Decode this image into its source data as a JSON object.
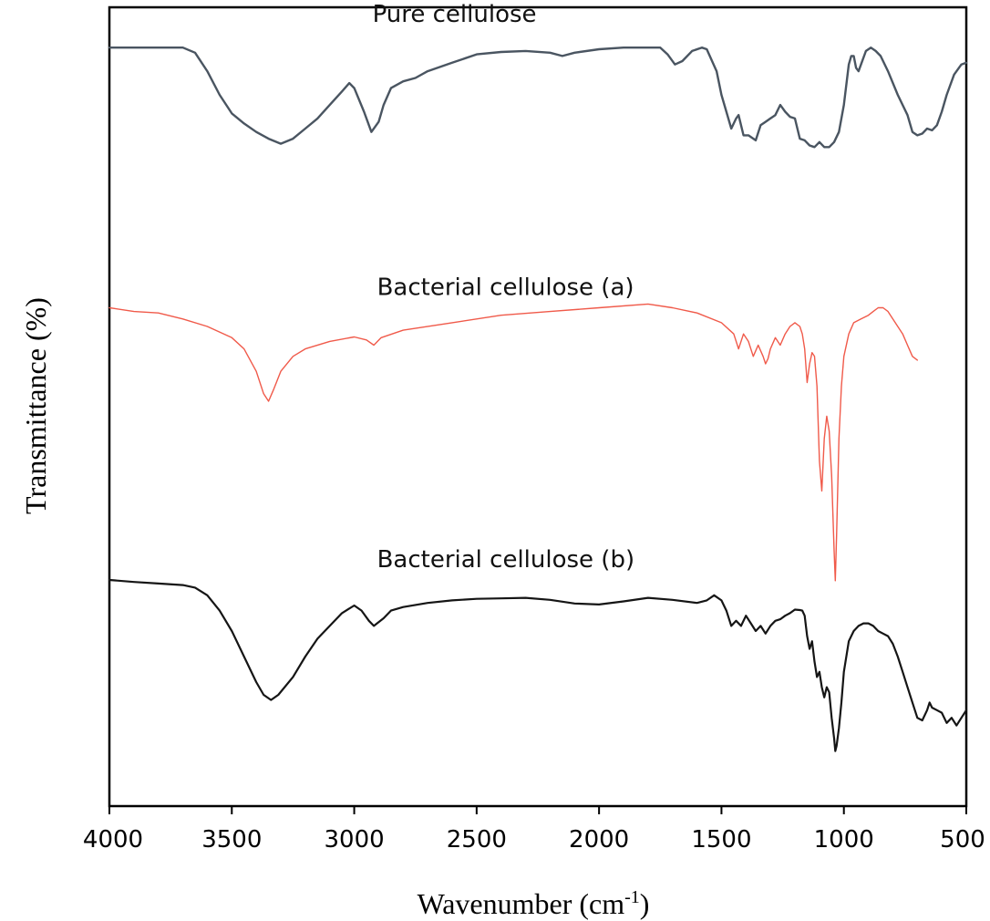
{
  "chart_data": {
    "type": "line",
    "xlabel": "Wavenumber (cm",
    "xlabel_sup": "-1",
    "xlabel_close": ")",
    "ylabel": "Transmittance (%)",
    "xlim": [
      4000,
      500
    ],
    "x_reversed": true,
    "ylim": [
      0,
      100
    ],
    "y_ticks_shown": false,
    "grid": false,
    "x_ticks": [
      4000,
      3500,
      3000,
      2500,
      2000,
      1500,
      1000,
      500
    ],
    "x_tick_labels": [
      "4000",
      "3500",
      "3000",
      "2500",
      "2000",
      "1500",
      "1000",
      "500"
    ],
    "series": [
      {
        "name": "Pure cellulose",
        "color": "#4a5561",
        "points": [
          [
            4000,
            94
          ],
          [
            3700,
            94
          ],
          [
            3650,
            92.5
          ],
          [
            3600,
            87
          ],
          [
            3550,
            80
          ],
          [
            3500,
            74.5
          ],
          [
            3450,
            71.5
          ],
          [
            3400,
            69
          ],
          [
            3350,
            67
          ],
          [
            3300,
            65.5
          ],
          [
            3250,
            67
          ],
          [
            3200,
            70
          ],
          [
            3150,
            73
          ],
          [
            3100,
            77
          ],
          [
            3050,
            81
          ],
          [
            3020,
            83.5
          ],
          [
            3000,
            82
          ],
          [
            2960,
            75
          ],
          [
            2930,
            69
          ],
          [
            2900,
            72
          ],
          [
            2880,
            77
          ],
          [
            2850,
            82
          ],
          [
            2800,
            84
          ],
          [
            2750,
            85
          ],
          [
            2700,
            87
          ],
          [
            2600,
            89.5
          ],
          [
            2500,
            92
          ],
          [
            2400,
            92.7
          ],
          [
            2300,
            93
          ],
          [
            2200,
            92.5
          ],
          [
            2150,
            91.5
          ],
          [
            2100,
            92.5
          ],
          [
            2000,
            93.5
          ],
          [
            1900,
            94
          ],
          [
            1750,
            94
          ],
          [
            1720,
            92
          ],
          [
            1690,
            89
          ],
          [
            1660,
            90
          ],
          [
            1620,
            93
          ],
          [
            1580,
            94
          ],
          [
            1560,
            93.5
          ],
          [
            1520,
            87
          ],
          [
            1500,
            80
          ],
          [
            1480,
            75
          ],
          [
            1460,
            70
          ],
          [
            1440,
            73
          ],
          [
            1430,
            74
          ],
          [
            1410,
            68
          ],
          [
            1390,
            68
          ],
          [
            1360,
            66.5
          ],
          [
            1340,
            71
          ],
          [
            1320,
            72
          ],
          [
            1300,
            73
          ],
          [
            1280,
            74
          ],
          [
            1260,
            77
          ],
          [
            1240,
            75
          ],
          [
            1220,
            73.5
          ],
          [
            1200,
            73
          ],
          [
            1180,
            67
          ],
          [
            1160,
            66.5
          ],
          [
            1140,
            65
          ],
          [
            1120,
            64.5
          ],
          [
            1100,
            66
          ],
          [
            1080,
            64.5
          ],
          [
            1060,
            64.5
          ],
          [
            1040,
            66
          ],
          [
            1020,
            69
          ],
          [
            1000,
            77
          ],
          [
            980,
            89
          ],
          [
            970,
            91.5
          ],
          [
            960,
            91.5
          ],
          [
            950,
            88
          ],
          [
            940,
            87
          ],
          [
            930,
            89
          ],
          [
            910,
            93
          ],
          [
            890,
            94
          ],
          [
            870,
            93
          ],
          [
            850,
            91.5
          ],
          [
            820,
            87
          ],
          [
            780,
            80
          ],
          [
            740,
            74
          ],
          [
            720,
            69
          ],
          [
            700,
            68
          ],
          [
            680,
            68.5
          ],
          [
            660,
            70
          ],
          [
            640,
            69.5
          ],
          [
            620,
            71
          ],
          [
            600,
            75
          ],
          [
            580,
            80
          ],
          [
            550,
            86
          ],
          [
            520,
            89
          ],
          [
            500,
            89.5
          ]
        ]
      },
      {
        "name": "Bacterial cellulose (a)",
        "color": "#f05a4a",
        "points": [
          [
            4000,
            62.5
          ],
          [
            3900,
            62
          ],
          [
            3800,
            61.8
          ],
          [
            3700,
            61
          ],
          [
            3600,
            60
          ],
          [
            3500,
            58.5
          ],
          [
            3450,
            57
          ],
          [
            3400,
            54
          ],
          [
            3370,
            51
          ],
          [
            3350,
            50
          ],
          [
            3330,
            51.5
          ],
          [
            3300,
            54
          ],
          [
            3250,
            56
          ],
          [
            3200,
            57
          ],
          [
            3100,
            58
          ],
          [
            3000,
            58.6
          ],
          [
            2950,
            58.2
          ],
          [
            2920,
            57.5
          ],
          [
            2890,
            58.5
          ],
          [
            2800,
            59.5
          ],
          [
            2600,
            60.5
          ],
          [
            2400,
            61.5
          ],
          [
            2200,
            62
          ],
          [
            2000,
            62.5
          ],
          [
            1800,
            63
          ],
          [
            1700,
            62.5
          ],
          [
            1600,
            61.8
          ],
          [
            1500,
            60.5
          ],
          [
            1450,
            59
          ],
          [
            1430,
            57
          ],
          [
            1410,
            59
          ],
          [
            1390,
            58
          ],
          [
            1370,
            56
          ],
          [
            1350,
            57.5
          ],
          [
            1330,
            56
          ],
          [
            1320,
            55
          ],
          [
            1310,
            55.7
          ],
          [
            1300,
            57
          ],
          [
            1280,
            58.5
          ],
          [
            1260,
            57.5
          ],
          [
            1240,
            59
          ],
          [
            1220,
            60
          ],
          [
            1200,
            60.5
          ],
          [
            1180,
            60
          ],
          [
            1170,
            59
          ],
          [
            1160,
            57
          ],
          [
            1150,
            52.5
          ],
          [
            1140,
            55
          ],
          [
            1130,
            56.5
          ],
          [
            1120,
            56
          ],
          [
            1110,
            52
          ],
          [
            1100,
            42
          ],
          [
            1090,
            38
          ],
          [
            1080,
            45
          ],
          [
            1070,
            48
          ],
          [
            1060,
            46
          ],
          [
            1050,
            40
          ],
          [
            1040,
            30
          ],
          [
            1035,
            26
          ],
          [
            1030,
            32
          ],
          [
            1020,
            45
          ],
          [
            1010,
            52
          ],
          [
            1000,
            56
          ],
          [
            980,
            59
          ],
          [
            960,
            60.5
          ],
          [
            930,
            61
          ],
          [
            900,
            61.5
          ],
          [
            880,
            62
          ],
          [
            860,
            62.5
          ],
          [
            840,
            62.5
          ],
          [
            820,
            62
          ],
          [
            800,
            61
          ],
          [
            780,
            60
          ],
          [
            760,
            59
          ],
          [
            740,
            57.5
          ],
          [
            720,
            56
          ],
          [
            700,
            55.5
          ]
        ]
      },
      {
        "name": "Bacterial cellulose (b)",
        "color": "#151515",
        "points": [
          [
            4000,
            40
          ],
          [
            3900,
            39.6
          ],
          [
            3800,
            39.3
          ],
          [
            3700,
            39
          ],
          [
            3650,
            38.5
          ],
          [
            3600,
            37
          ],
          [
            3550,
            34
          ],
          [
            3500,
            30
          ],
          [
            3450,
            25
          ],
          [
            3400,
            20
          ],
          [
            3370,
            17.5
          ],
          [
            3340,
            16.5
          ],
          [
            3310,
            17.5
          ],
          [
            3250,
            21
          ],
          [
            3200,
            25
          ],
          [
            3150,
            28.5
          ],
          [
            3100,
            31
          ],
          [
            3050,
            33.5
          ],
          [
            3000,
            35
          ],
          [
            2970,
            34
          ],
          [
            2940,
            32
          ],
          [
            2920,
            31
          ],
          [
            2880,
            32.5
          ],
          [
            2850,
            34
          ],
          [
            2800,
            34.7
          ],
          [
            2700,
            35.5
          ],
          [
            2600,
            36
          ],
          [
            2500,
            36.3
          ],
          [
            2400,
            36.4
          ],
          [
            2300,
            36.5
          ],
          [
            2200,
            36.1
          ],
          [
            2100,
            35.4
          ],
          [
            2000,
            35.2
          ],
          [
            1900,
            35.8
          ],
          [
            1800,
            36.5
          ],
          [
            1700,
            36.1
          ],
          [
            1600,
            35.5
          ],
          [
            1560,
            36
          ],
          [
            1530,
            37
          ],
          [
            1500,
            36
          ],
          [
            1480,
            34
          ],
          [
            1460,
            31
          ],
          [
            1440,
            32
          ],
          [
            1420,
            31
          ],
          [
            1400,
            33
          ],
          [
            1380,
            31.5
          ],
          [
            1360,
            30
          ],
          [
            1340,
            31
          ],
          [
            1320,
            29.5
          ],
          [
            1300,
            31
          ],
          [
            1280,
            32
          ],
          [
            1260,
            32.3
          ],
          [
            1240,
            33
          ],
          [
            1220,
            33.5
          ],
          [
            1200,
            34.2
          ],
          [
            1180,
            34.1
          ],
          [
            1170,
            34
          ],
          [
            1160,
            33
          ],
          [
            1150,
            29
          ],
          [
            1140,
            26.5
          ],
          [
            1130,
            28
          ],
          [
            1120,
            24
          ],
          [
            1110,
            21
          ],
          [
            1100,
            22
          ],
          [
            1090,
            19
          ],
          [
            1080,
            17
          ],
          [
            1070,
            19
          ],
          [
            1060,
            18
          ],
          [
            1050,
            13
          ],
          [
            1040,
            9
          ],
          [
            1035,
            6.5
          ],
          [
            1030,
            7.5
          ],
          [
            1020,
            11
          ],
          [
            1010,
            16
          ],
          [
            1000,
            22
          ],
          [
            980,
            28
          ],
          [
            960,
            30
          ],
          [
            940,
            31
          ],
          [
            920,
            31.5
          ],
          [
            900,
            31.5
          ],
          [
            880,
            31
          ],
          [
            860,
            30
          ],
          [
            840,
            29.5
          ],
          [
            820,
            29
          ],
          [
            800,
            27.5
          ],
          [
            780,
            25
          ],
          [
            760,
            22
          ],
          [
            740,
            19
          ],
          [
            720,
            16
          ],
          [
            700,
            13
          ],
          [
            680,
            12.5
          ],
          [
            660,
            14.5
          ],
          [
            650,
            16
          ],
          [
            640,
            15
          ],
          [
            620,
            14.5
          ],
          [
            600,
            14
          ],
          [
            580,
            12
          ],
          [
            560,
            13
          ],
          [
            540,
            11.5
          ],
          [
            520,
            13
          ],
          [
            500,
            14.5
          ]
        ]
      }
    ]
  }
}
